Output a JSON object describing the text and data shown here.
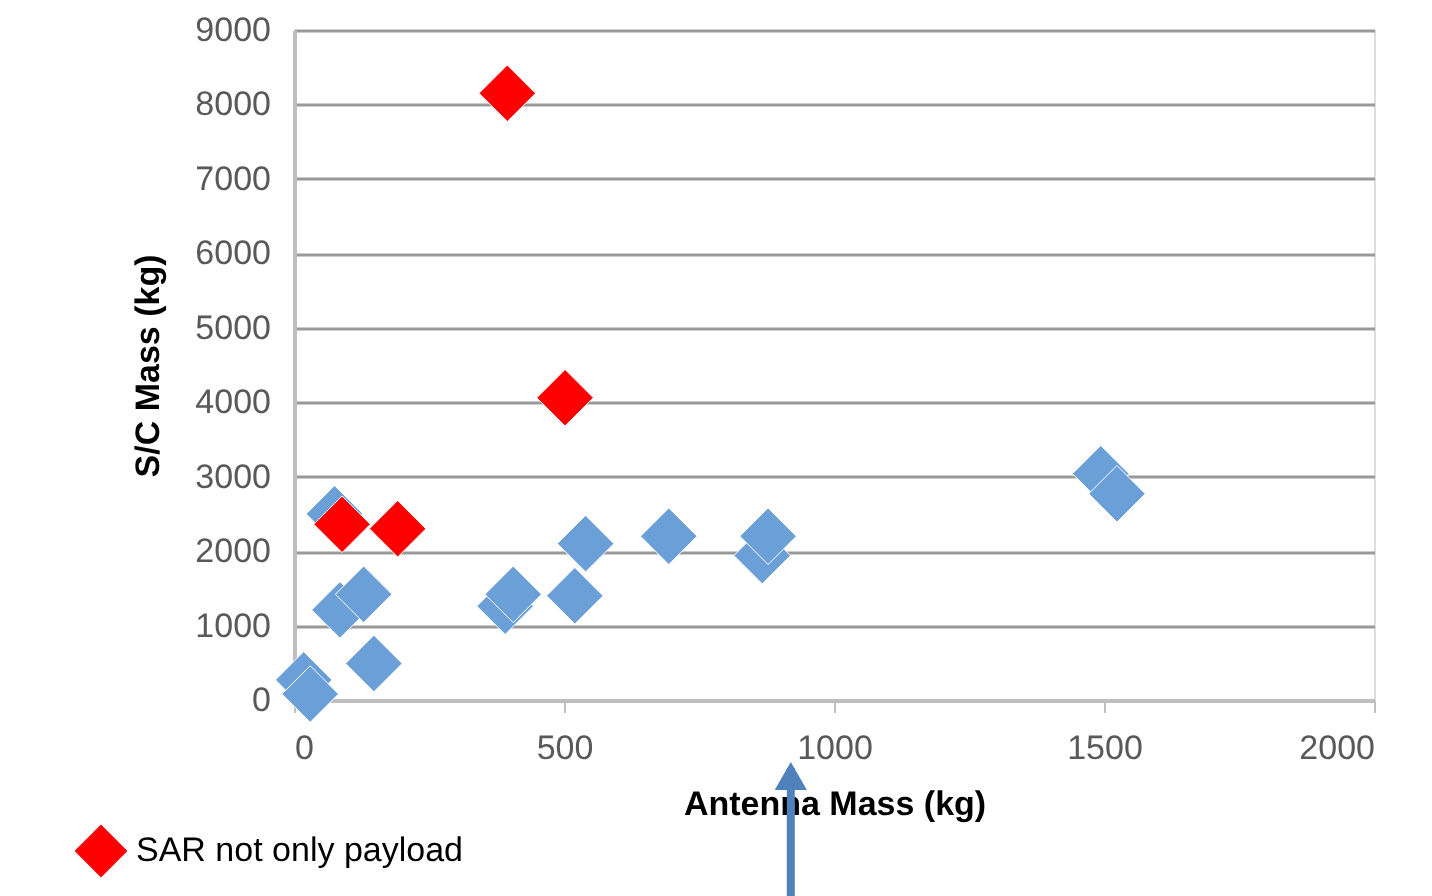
{
  "chart_data": {
    "type": "scatter",
    "xlabel": "Antenna Mass (kg)",
    "ylabel": "S/C Mass (kg)",
    "xlim": [
      0,
      2000
    ],
    "xticks": [
      0,
      500,
      1000,
      1500,
      2000
    ],
    "ylim": [
      0,
      9000
    ],
    "yticks": [
      0,
      1000,
      2000,
      3000,
      4000,
      5000,
      6000,
      7000,
      8000,
      9000
    ],
    "grid": "y",
    "legend": "bottom left",
    "marker": "diamond",
    "series": [
      {
        "color": "#6a9fd8",
        "x": [
          18,
          30,
          75,
          85,
          129,
          148,
          391,
          406,
          520,
          540,
          694,
          867,
          878,
          1494,
          1524
        ],
        "values": [
          270,
          80,
          2500,
          1210,
          1420,
          490,
          1260,
          1420,
          1400,
          2100,
          2200,
          1940,
          2200,
          3040,
          2770
        ]
      },
      {
        "name": "SAR not only payload",
        "color": "#ff0000",
        "x": [
          89,
          192,
          395,
          502
        ],
        "values": [
          2360,
          2300,
          8150,
          4060
        ]
      }
    ]
  }
}
